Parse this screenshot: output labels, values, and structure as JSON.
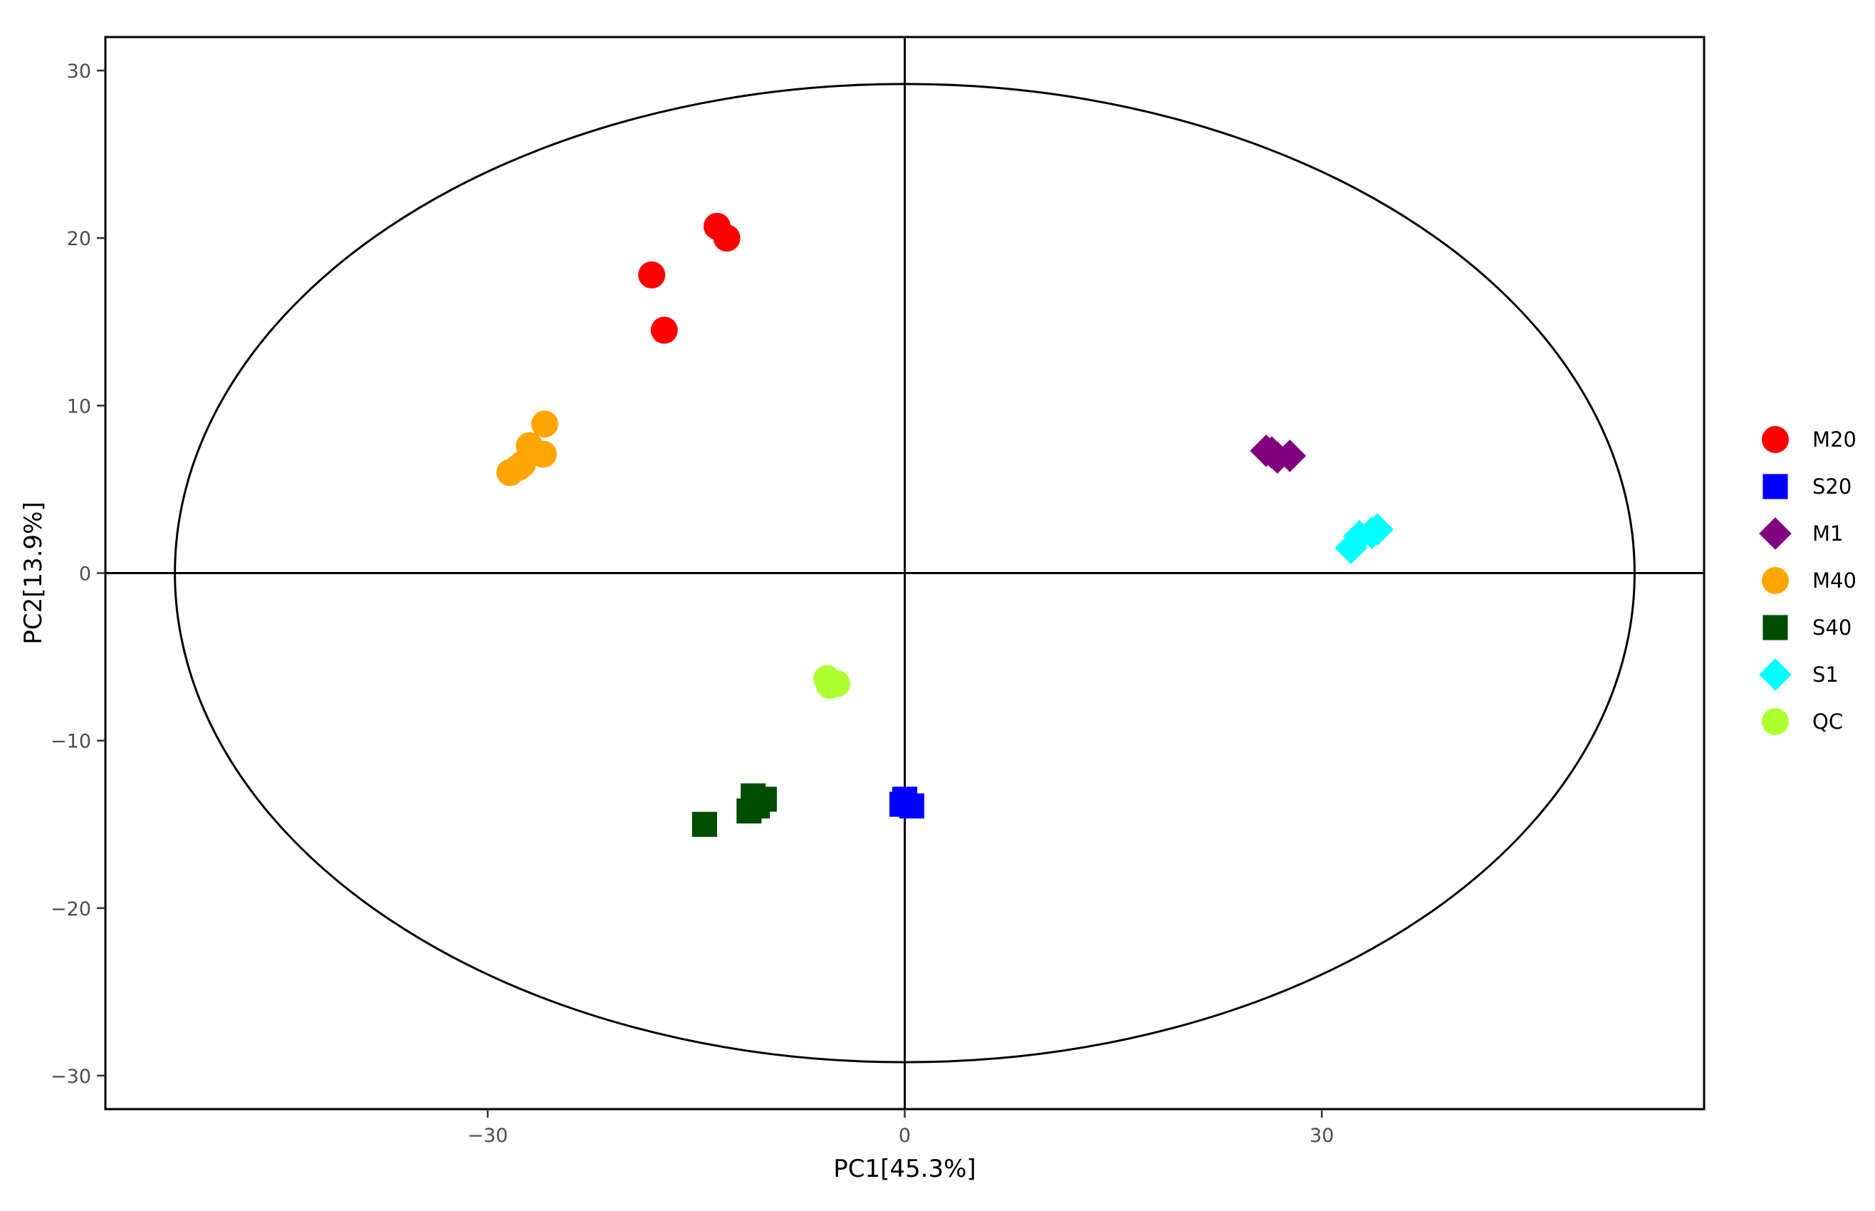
{
  "chart_data": {
    "type": "scatter",
    "title": "",
    "xlabel": "PC1[45.3%]",
    "ylabel": "PC2[13.9%]",
    "xlim": [
      -57.5,
      57.5
    ],
    "ylim": [
      -32,
      32
    ],
    "x_ticks": [
      -30,
      0,
      30
    ],
    "y_ticks": [
      -30,
      -20,
      -10,
      0,
      10,
      20,
      30
    ],
    "grid": false,
    "reference_lines": {
      "x": 0,
      "y": 0
    },
    "confidence_ellipse": {
      "center": [
        0,
        0
      ],
      "rx": 52.5,
      "ry": 29.2
    },
    "legend_position": "right",
    "series": [
      {
        "name": "M20",
        "shape": "circle",
        "color": "#ff0000",
        "points": [
          [
            -13.5,
            20.7
          ],
          [
            -12.8,
            20.0
          ],
          [
            -18.2,
            17.8
          ],
          [
            -17.3,
            14.5
          ]
        ]
      },
      {
        "name": "S20",
        "shape": "square",
        "color": "#0000ff",
        "points": [
          [
            0.0,
            -13.5
          ],
          [
            0.5,
            -13.9
          ],
          [
            -0.2,
            -13.8
          ]
        ]
      },
      {
        "name": "M1",
        "shape": "diamond",
        "color": "#800080",
        "points": [
          [
            26.0,
            7.3
          ],
          [
            26.8,
            6.9
          ],
          [
            27.7,
            7.0
          ],
          [
            26.4,
            7.2
          ]
        ]
      },
      {
        "name": "M40",
        "shape": "circle",
        "color": "#ffa500",
        "points": [
          [
            -28.4,
            6.0
          ],
          [
            -27.5,
            6.5
          ],
          [
            -27.0,
            7.6
          ],
          [
            -26.0,
            7.1
          ],
          [
            -25.9,
            8.9
          ],
          [
            -27.8,
            6.3
          ]
        ]
      },
      {
        "name": "S40",
        "shape": "square",
        "color": "#004d00",
        "points": [
          [
            -14.4,
            -15.0
          ],
          [
            -10.9,
            -13.3
          ],
          [
            -11.2,
            -14.2
          ],
          [
            -10.6,
            -13.9
          ],
          [
            -10.1,
            -13.5
          ]
        ]
      },
      {
        "name": "S1",
        "shape": "diamond",
        "color": "#00ffff",
        "points": [
          [
            32.1,
            1.5
          ],
          [
            32.7,
            2.2
          ],
          [
            33.6,
            2.4
          ],
          [
            34.0,
            2.6
          ]
        ]
      },
      {
        "name": "QC",
        "shape": "circle",
        "color": "#adff2f",
        "points": [
          [
            -5.6,
            -6.3
          ],
          [
            -4.9,
            -6.6
          ],
          [
            -5.4,
            -6.7
          ]
        ]
      }
    ]
  }
}
